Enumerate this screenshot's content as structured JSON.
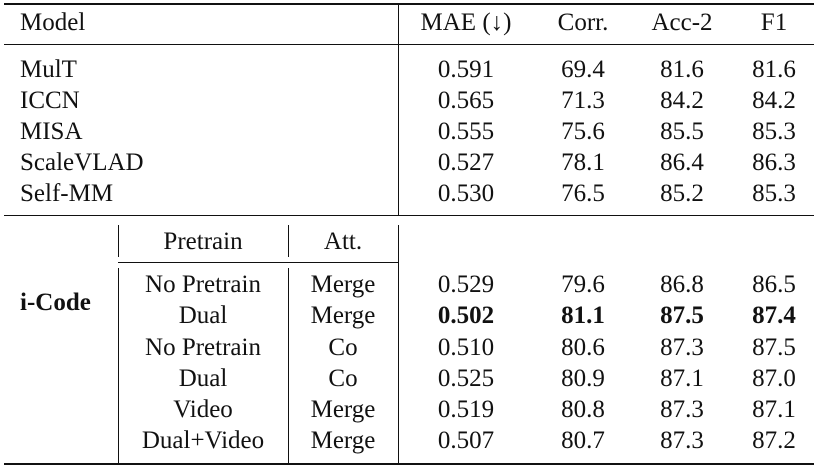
{
  "columns": {
    "model": "Model",
    "mae": "MAE (↓)",
    "corr": "Corr.",
    "acc2": "Acc-2",
    "f1": "F1"
  },
  "baselines": [
    {
      "model": "MulT",
      "mae": "0.591",
      "corr": "69.4",
      "acc2": "81.6",
      "f1": "81.6"
    },
    {
      "model": "ICCN",
      "mae": "0.565",
      "corr": "71.3",
      "acc2": "84.2",
      "f1": "84.2"
    },
    {
      "model": "MISA",
      "mae": "0.555",
      "corr": "75.6",
      "acc2": "85.5",
      "f1": "85.3"
    },
    {
      "model": "ScaleVLAD",
      "mae": "0.527",
      "corr": "78.1",
      "acc2": "86.4",
      "f1": "86.3"
    },
    {
      "model": "Self-MM",
      "mae": "0.530",
      "corr": "76.5",
      "acc2": "85.2",
      "f1": "85.3"
    }
  ],
  "icode": {
    "label": "i-Code",
    "sub_columns": {
      "pretrain": "Pretrain",
      "att": "Att."
    },
    "rows": [
      {
        "pretrain": "No Pretrain",
        "att": "Merge",
        "mae": "0.529",
        "corr": "79.6",
        "acc2": "86.8",
        "f1": "86.5"
      },
      {
        "pretrain": "Dual",
        "att": "Merge",
        "mae": "0.502",
        "corr": "81.1",
        "acc2": "87.5",
        "f1": "87.4"
      },
      {
        "pretrain": "No Pretrain",
        "att": "Co",
        "mae": "0.510",
        "corr": "80.6",
        "acc2": "87.3",
        "f1": "87.5"
      },
      {
        "pretrain": "Dual",
        "att": "Co",
        "mae": "0.525",
        "corr": "80.9",
        "acc2": "87.1",
        "f1": "87.0"
      },
      {
        "pretrain": "Video",
        "att": "Merge",
        "mae": "0.519",
        "corr": "80.8",
        "acc2": "87.3",
        "f1": "87.1"
      },
      {
        "pretrain": "Dual+Video",
        "att": "Merge",
        "mae": "0.507",
        "corr": "80.7",
        "acc2": "87.3",
        "f1": "87.2"
      }
    ]
  }
}
